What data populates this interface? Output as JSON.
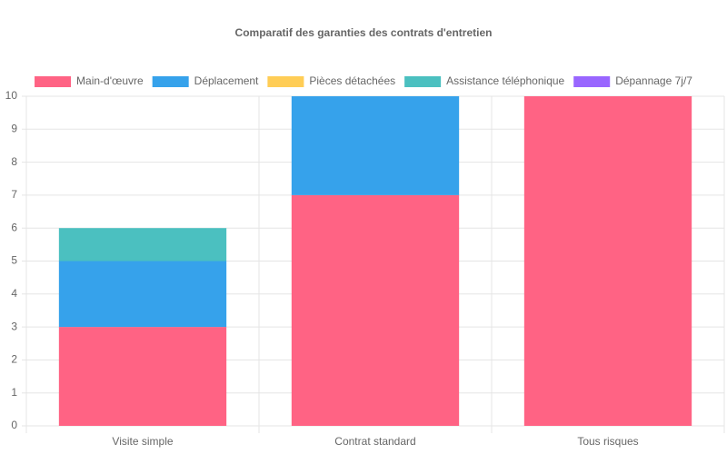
{
  "chart_data": {
    "type": "stacked-bar",
    "title": "Comparatif des garanties des contrats d'entretien",
    "categories": [
      "Visite simple",
      "Contrat standard",
      "Tous risques"
    ],
    "series": [
      {
        "name": "Main-d'œuvre",
        "color": "#ff6384",
        "values": [
          3,
          7,
          10
        ]
      },
      {
        "name": "Déplacement",
        "color": "#36a2eb",
        "values": [
          2,
          3,
          0
        ]
      },
      {
        "name": "Pièces détachées",
        "color": "#ffcd56",
        "values": [
          0,
          0,
          0
        ]
      },
      {
        "name": "Assistance téléphonique",
        "color": "#4bc0c0",
        "values": [
          1,
          0,
          0
        ]
      },
      {
        "name": "Dépannage 7j/7",
        "color": "#9966ff",
        "values": [
          0,
          0,
          0
        ]
      }
    ],
    "ylim": [
      0,
      10
    ],
    "yticks": [
      0,
      1,
      2,
      3,
      4,
      5,
      6,
      7,
      8,
      9,
      10
    ],
    "grid": true,
    "legend": "top"
  }
}
